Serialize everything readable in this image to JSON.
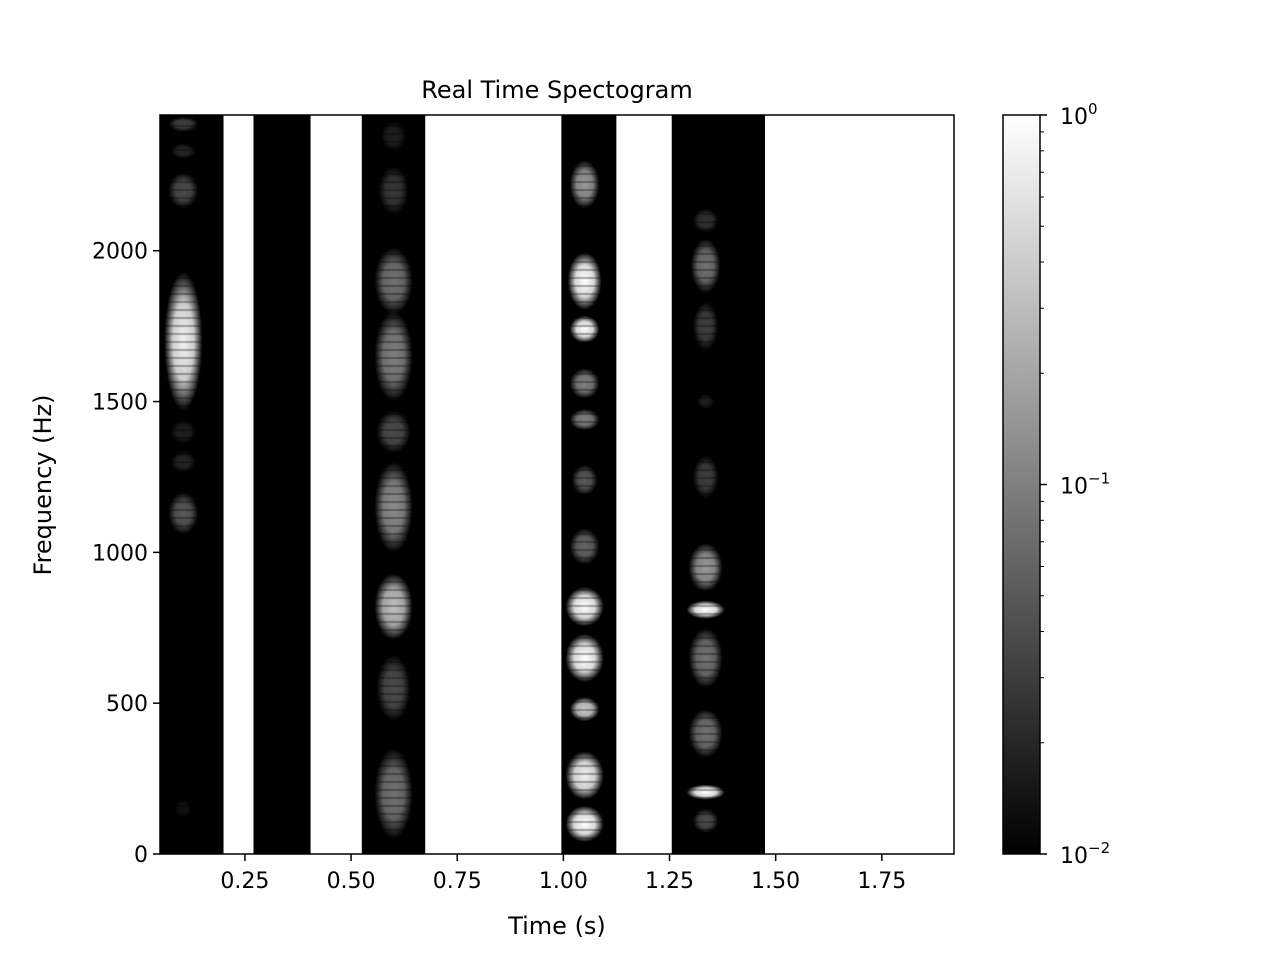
{
  "chart_data": {
    "type": "heatmap",
    "title": "Real Time Spectogram",
    "xlabel": "Time (s)",
    "ylabel": "Frequency (Hz)",
    "xlim": [
      0.05,
      1.92
    ],
    "ylim": [
      0,
      2450
    ],
    "xticks": [
      {
        "value": 0.25,
        "label": "0.25"
      },
      {
        "value": 0.5,
        "label": "0.50"
      },
      {
        "value": 0.75,
        "label": "0.75"
      },
      {
        "value": 1.0,
        "label": "1.00"
      },
      {
        "value": 1.25,
        "label": "1.25"
      },
      {
        "value": 1.5,
        "label": "1.50"
      },
      {
        "value": 1.75,
        "label": "1.75"
      }
    ],
    "yticks": [
      {
        "value": 0,
        "label": "0"
      },
      {
        "value": 500,
        "label": "500"
      },
      {
        "value": 1000,
        "label": "1000"
      },
      {
        "value": 1500,
        "label": "1500"
      },
      {
        "value": 2000,
        "label": "2000"
      }
    ],
    "colormap": "gray",
    "colorbar": {
      "scale": "log",
      "min": 0.01,
      "max": 1,
      "ticks": [
        {
          "value": 1,
          "base": "10",
          "exp": "0"
        },
        {
          "value": 0.1,
          "base": "10",
          "exp": "−1"
        },
        {
          "value": 0.01,
          "base": "10",
          "exp": "−2"
        }
      ]
    },
    "frames": [
      {
        "t0": 0.05,
        "t1": 0.2,
        "blobs": [
          {
            "f": 2420,
            "fw": 25,
            "tc": 0.105,
            "tw": 0.035,
            "v": 0.25
          },
          {
            "f": 2330,
            "fw": 25,
            "tc": 0.105,
            "tw": 0.03,
            "v": 0.15
          },
          {
            "f": 2200,
            "fw": 60,
            "tc": 0.105,
            "tw": 0.035,
            "v": 0.3
          },
          {
            "f": 1700,
            "fw": 230,
            "tc": 0.105,
            "tw": 0.045,
            "v": 0.95
          },
          {
            "f": 1400,
            "fw": 40,
            "tc": 0.105,
            "tw": 0.03,
            "v": 0.12
          },
          {
            "f": 1300,
            "fw": 35,
            "tc": 0.105,
            "tw": 0.03,
            "v": 0.15
          },
          {
            "f": 1130,
            "fw": 70,
            "tc": 0.105,
            "tw": 0.035,
            "v": 0.35
          },
          {
            "f": 150,
            "fw": 30,
            "tc": 0.105,
            "tw": 0.02,
            "v": 0.07
          }
        ]
      },
      {
        "t0": 0.2,
        "t1": 0.27,
        "blank": true
      },
      {
        "t0": 0.27,
        "t1": 0.405,
        "blobs": []
      },
      {
        "t0": 0.405,
        "t1": 0.525,
        "blank": true
      },
      {
        "t0": 0.525,
        "t1": 0.675,
        "blobs": [
          {
            "f": 2380,
            "fw": 50,
            "tc": 0.6,
            "tw": 0.03,
            "v": 0.12
          },
          {
            "f": 2200,
            "fw": 80,
            "tc": 0.6,
            "tw": 0.035,
            "v": 0.22
          },
          {
            "f": 1900,
            "fw": 110,
            "tc": 0.6,
            "tw": 0.045,
            "v": 0.45
          },
          {
            "f": 1650,
            "fw": 150,
            "tc": 0.6,
            "tw": 0.045,
            "v": 0.5
          },
          {
            "f": 1400,
            "fw": 70,
            "tc": 0.6,
            "tw": 0.04,
            "v": 0.3
          },
          {
            "f": 1150,
            "fw": 150,
            "tc": 0.6,
            "tw": 0.045,
            "v": 0.55
          },
          {
            "f": 820,
            "fw": 110,
            "tc": 0.6,
            "tw": 0.045,
            "v": 0.75
          },
          {
            "f": 550,
            "fw": 110,
            "tc": 0.6,
            "tw": 0.04,
            "v": 0.3
          },
          {
            "f": 200,
            "fw": 150,
            "tc": 0.6,
            "tw": 0.045,
            "v": 0.45
          }
        ]
      },
      {
        "t0": 0.675,
        "t1": 0.995,
        "blank": true
      },
      {
        "t0": 0.995,
        "t1": 1.125,
        "blobs": [
          {
            "f": 2220,
            "fw": 80,
            "tc": 1.05,
            "tw": 0.035,
            "v": 0.6
          },
          {
            "f": 1900,
            "fw": 95,
            "tc": 1.05,
            "tw": 0.04,
            "v": 1.0
          },
          {
            "f": 1740,
            "fw": 45,
            "tc": 1.05,
            "tw": 0.035,
            "v": 1.0
          },
          {
            "f": 1560,
            "fw": 50,
            "tc": 1.05,
            "tw": 0.035,
            "v": 0.5
          },
          {
            "f": 1440,
            "fw": 35,
            "tc": 1.05,
            "tw": 0.035,
            "v": 0.5
          },
          {
            "f": 1240,
            "fw": 50,
            "tc": 1.05,
            "tw": 0.03,
            "v": 0.35
          },
          {
            "f": 1020,
            "fw": 60,
            "tc": 1.05,
            "tw": 0.035,
            "v": 0.4
          },
          {
            "f": 820,
            "fw": 65,
            "tc": 1.05,
            "tw": 0.045,
            "v": 1.0
          },
          {
            "f": 650,
            "fw": 80,
            "tc": 1.05,
            "tw": 0.045,
            "v": 1.0
          },
          {
            "f": 480,
            "fw": 40,
            "tc": 1.05,
            "tw": 0.035,
            "v": 0.8
          },
          {
            "f": 260,
            "fw": 80,
            "tc": 1.05,
            "tw": 0.045,
            "v": 0.95
          },
          {
            "f": 100,
            "fw": 60,
            "tc": 1.05,
            "tw": 0.045,
            "v": 1.0
          }
        ]
      },
      {
        "t0": 1.125,
        "t1": 1.255,
        "blank": true
      },
      {
        "t0": 1.255,
        "t1": 1.475,
        "blobs": [
          {
            "f": 2100,
            "fw": 40,
            "tc": 1.335,
            "tw": 0.03,
            "v": 0.2
          },
          {
            "f": 1950,
            "fw": 90,
            "tc": 1.335,
            "tw": 0.035,
            "v": 0.45
          },
          {
            "f": 1750,
            "fw": 80,
            "tc": 1.335,
            "tw": 0.03,
            "v": 0.25
          },
          {
            "f": 1500,
            "fw": 25,
            "tc": 1.335,
            "tw": 0.02,
            "v": 0.12
          },
          {
            "f": 1250,
            "fw": 70,
            "tc": 1.335,
            "tw": 0.03,
            "v": 0.25
          },
          {
            "f": 950,
            "fw": 80,
            "tc": 1.335,
            "tw": 0.04,
            "v": 0.6
          },
          {
            "f": 810,
            "fw": 30,
            "tc": 1.335,
            "tw": 0.045,
            "v": 1.0
          },
          {
            "f": 650,
            "fw": 100,
            "tc": 1.335,
            "tw": 0.04,
            "v": 0.45
          },
          {
            "f": 400,
            "fw": 80,
            "tc": 1.335,
            "tw": 0.04,
            "v": 0.45
          },
          {
            "f": 205,
            "fw": 25,
            "tc": 1.335,
            "tw": 0.045,
            "v": 1.0
          },
          {
            "f": 110,
            "fw": 40,
            "tc": 1.335,
            "tw": 0.03,
            "v": 0.3
          }
        ]
      },
      {
        "t0": 1.475,
        "t1": 1.92,
        "blank": true
      }
    ]
  }
}
